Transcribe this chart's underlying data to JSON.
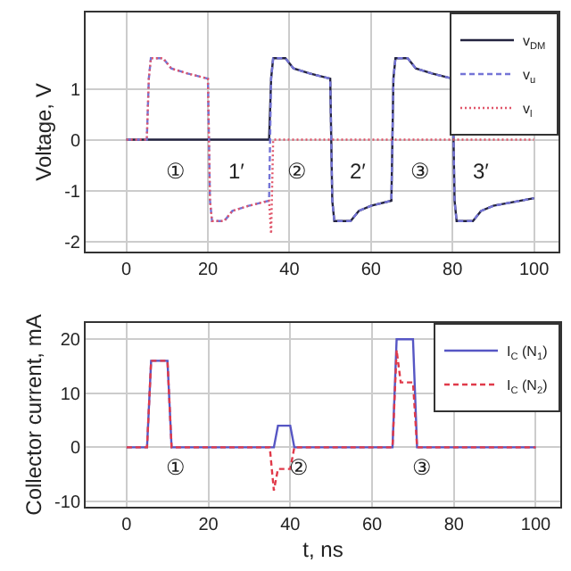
{
  "chart_data": [
    {
      "type": "line",
      "ylabel": "Voltage, V",
      "xlim": [
        -10,
        106
      ],
      "ylim": [
        -2.2,
        2.5
      ],
      "xticks": [
        0,
        20,
        40,
        60,
        80,
        100
      ],
      "yticks": [
        -2,
        -1,
        0,
        1
      ],
      "grid": true,
      "legend": "top right",
      "marker": "none",
      "series": [
        {
          "name": "v$_{DM}$",
          "color": "#23233f",
          "line_style": "solid",
          "x": [
            0,
            35,
            35.5,
            36,
            39,
            41,
            45,
            50,
            50.5,
            51,
            55,
            57,
            60,
            65,
            65.5,
            66,
            69,
            71,
            75,
            80,
            80.5,
            81,
            85,
            87,
            90,
            100
          ],
          "values": [
            0,
            0,
            1.2,
            1.6,
            1.6,
            1.4,
            1.3,
            1.2,
            -1.2,
            -1.6,
            -1.6,
            -1.4,
            -1.3,
            -1.2,
            1.2,
            1.6,
            1.6,
            1.4,
            1.3,
            1.2,
            -1.2,
            -1.6,
            -1.6,
            -1.4,
            -1.3,
            -1.15
          ]
        },
        {
          "name": "v$_{u}$",
          "color": "#7474d6",
          "line_style": "dashed",
          "x": [
            0,
            5,
            5.5,
            6,
            9,
            11,
            15,
            20,
            20.5,
            21,
            24,
            26,
            30,
            35,
            35.5,
            36,
            39,
            41,
            45,
            50,
            50.5,
            51,
            55,
            57,
            60,
            65,
            65.5,
            66,
            69,
            71,
            75,
            80,
            80.5,
            81,
            85,
            87,
            90,
            100
          ],
          "values": [
            0,
            0,
            1.2,
            1.6,
            1.6,
            1.4,
            1.3,
            1.2,
            -1.2,
            -1.6,
            -1.6,
            -1.4,
            -1.3,
            -1.2,
            1.2,
            1.6,
            1.6,
            1.4,
            1.3,
            1.2,
            -1.2,
            -1.6,
            -1.6,
            -1.4,
            -1.3,
            -1.2,
            1.2,
            1.6,
            1.6,
            1.4,
            1.3,
            1.2,
            -1.2,
            -1.6,
            -1.6,
            -1.4,
            -1.3,
            -1.15
          ]
        },
        {
          "name": "v$_{l}$",
          "color": "#e0566a",
          "line_style": "dotted",
          "x": [
            0,
            5,
            5.5,
            6,
            9,
            11,
            15,
            20,
            20.5,
            21,
            24,
            26,
            30,
            35,
            35.5,
            36,
            100
          ],
          "values": [
            0,
            0,
            1.2,
            1.6,
            1.6,
            1.4,
            1.3,
            1.2,
            -1.2,
            -1.6,
            -1.6,
            -1.4,
            -1.3,
            -1.2,
            -1.85,
            0,
            0
          ]
        }
      ],
      "annotations": [
        "①",
        "1′",
        "②",
        "2′",
        "③",
        "3′"
      ]
    },
    {
      "type": "line",
      "xlabel": "t, ns",
      "ylabel": "Collector current, mA",
      "xlim": [
        -10,
        106
      ],
      "ylim": [
        -11,
        23
      ],
      "xticks": [
        0,
        20,
        40,
        60,
        80,
        100
      ],
      "yticks": [
        -10,
        0,
        10,
        20
      ],
      "grid": true,
      "legend": "top right",
      "marker": "none",
      "series": [
        {
          "name": "I$_{C}$ (N$_{1}$)",
          "color": "#5656c4",
          "line_style": "solid",
          "x": [
            0,
            5,
            6,
            10,
            11,
            36,
            37,
            40,
            41,
            65,
            66,
            70,
            71,
            100
          ],
          "values": [
            0,
            0,
            16,
            16,
            0,
            0,
            4,
            4,
            0,
            0,
            20,
            20,
            0,
            0
          ]
        },
        {
          "name": "I$_{C}$ (N$_{2}$)",
          "color": "#e03a4a",
          "line_style": "dashed",
          "x": [
            0,
            5,
            6,
            10,
            11,
            35,
            36,
            37,
            40,
            41,
            65,
            66,
            67,
            70,
            71,
            100
          ],
          "values": [
            0,
            0,
            16,
            16,
            0,
            0,
            -8,
            -4,
            -4,
            0,
            0,
            18,
            12,
            12,
            0,
            0
          ]
        }
      ],
      "annotations": [
        "①",
        "②",
        "③"
      ]
    }
  ]
}
